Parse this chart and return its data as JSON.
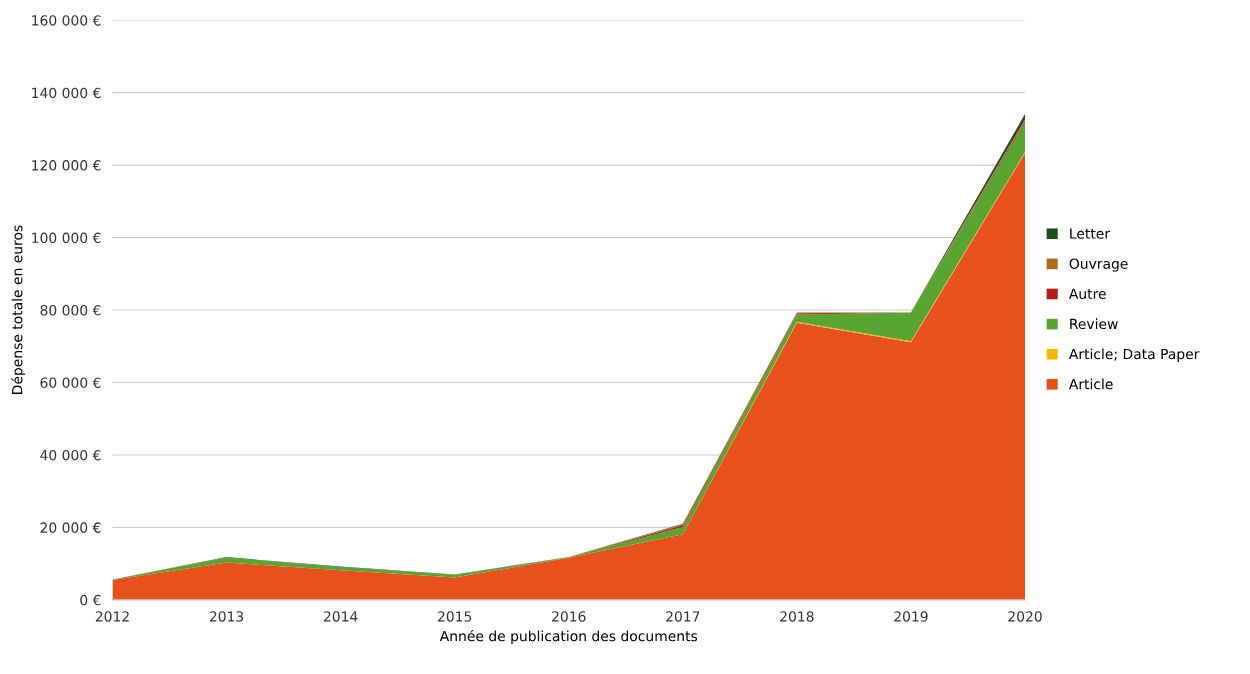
{
  "chart_data": {
    "type": "area",
    "stacked": true,
    "xlabel": "Année de publication des documents",
    "ylabel": "Dépense totale en euros",
    "x": [
      2012,
      2013,
      2014,
      2015,
      2016,
      2017,
      2018,
      2019,
      2020
    ],
    "xlim": [
      2012,
      2020
    ],
    "xticks": [
      2012,
      2013,
      2014,
      2015,
      2016,
      2017,
      2018,
      2019,
      2020
    ],
    "ylim": [
      0,
      160000
    ],
    "yticks": [
      {
        "value": 0,
        "label": "0 €"
      },
      {
        "value": 20000,
        "label": "20 000 €"
      },
      {
        "value": 40000,
        "label": "40 000 €"
      },
      {
        "value": 60000,
        "label": "60 000 €"
      },
      {
        "value": 80000,
        "label": "80 000 €"
      },
      {
        "value": 100000,
        "label": "100 000 €"
      },
      {
        "value": 120000,
        "label": "120 000 €"
      },
      {
        "value": 140000,
        "label": "140 000 €"
      },
      {
        "value": 160000,
        "label": "160 000 €"
      }
    ],
    "grid": "y",
    "legend": "right",
    "series": [
      {
        "name": "Article",
        "color": "#e8501c",
        "values": [
          5500,
          10300,
          8200,
          6200,
          11600,
          18100,
          76500,
          71100,
          123300
        ]
      },
      {
        "name": "Article; Data Paper",
        "color": "#f5b800",
        "values": [
          0,
          0,
          0,
          0,
          0,
          0,
          300,
          300,
          300
        ]
      },
      {
        "name": "Review",
        "color": "#5aa532",
        "values": [
          100,
          1400,
          900,
          700,
          200,
          2000,
          2000,
          7900,
          8000
        ]
      },
      {
        "name": "Autre",
        "color": "#b01c1c",
        "values": [
          0,
          0,
          0,
          0,
          0,
          500,
          300,
          0,
          500
        ]
      },
      {
        "name": "Ouvrage",
        "color": "#b06a1c",
        "values": [
          0,
          0,
          0,
          0,
          0,
          300,
          200,
          0,
          500
        ]
      },
      {
        "name": "Letter",
        "color": "#1e4d1e",
        "values": [
          0,
          100,
          100,
          100,
          0,
          100,
          0,
          0,
          1500
        ]
      }
    ]
  }
}
